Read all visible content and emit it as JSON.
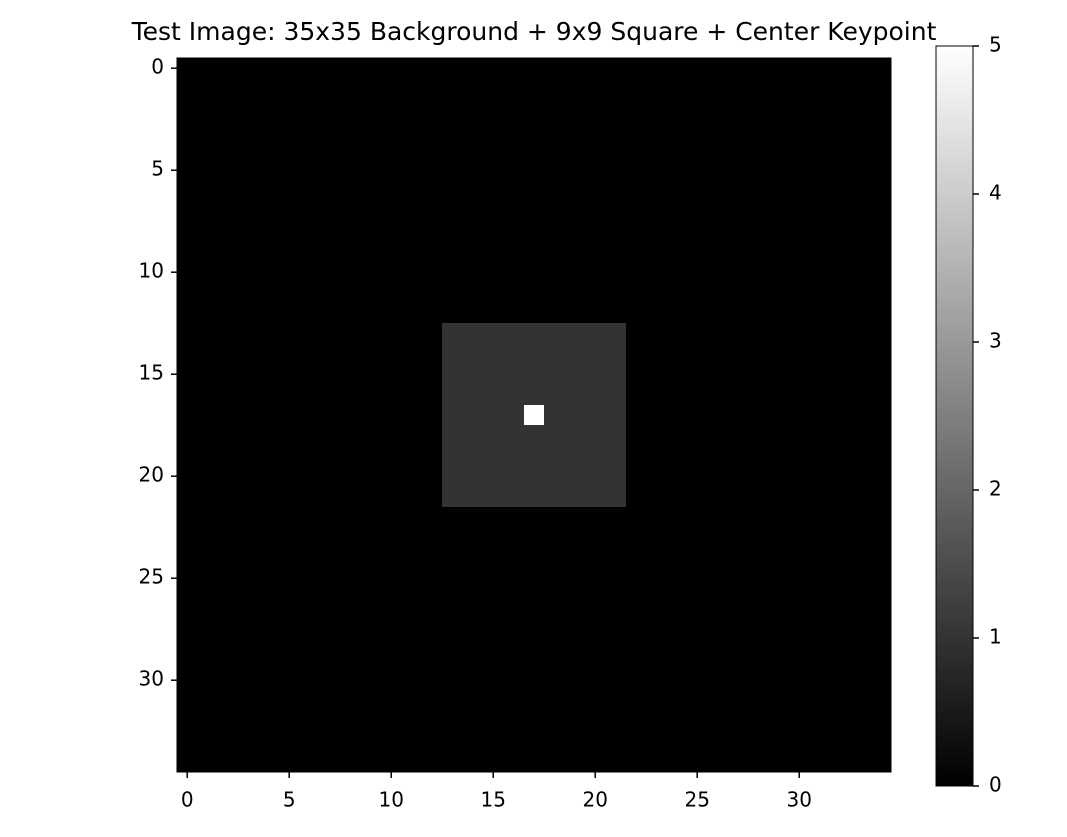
{
  "chart_data": {
    "type": "image",
    "title": "Test Image: 35x35 Background + 9x9 Square + Center Keypoint",
    "colormap": "gray",
    "clim": [
      0,
      5
    ],
    "cticks": [
      0,
      1,
      2,
      3,
      4,
      5
    ],
    "xlim": [
      -0.5,
      34.5
    ],
    "ylim": [
      34.5,
      -0.5
    ],
    "xticks": [
      0,
      5,
      10,
      15,
      20,
      25,
      30
    ],
    "yticks": [
      0,
      5,
      10,
      15,
      20,
      25,
      30
    ],
    "values": [
      [
        0,
        0,
        0,
        0,
        0,
        0,
        0,
        0,
        0,
        0,
        0,
        0,
        0,
        0,
        0,
        0,
        0,
        0,
        0,
        0,
        0,
        0,
        0,
        0,
        0,
        0,
        0,
        0,
        0,
        0,
        0,
        0,
        0,
        0,
        0
      ],
      [
        0,
        0,
        0,
        0,
        0,
        0,
        0,
        0,
        0,
        0,
        0,
        0,
        0,
        0,
        0,
        0,
        0,
        0,
        0,
        0,
        0,
        0,
        0,
        0,
        0,
        0,
        0,
        0,
        0,
        0,
        0,
        0,
        0,
        0,
        0
      ],
      [
        0,
        0,
        0,
        0,
        0,
        0,
        0,
        0,
        0,
        0,
        0,
        0,
        0,
        0,
        0,
        0,
        0,
        0,
        0,
        0,
        0,
        0,
        0,
        0,
        0,
        0,
        0,
        0,
        0,
        0,
        0,
        0,
        0,
        0,
        0
      ],
      [
        0,
        0,
        0,
        0,
        0,
        0,
        0,
        0,
        0,
        0,
        0,
        0,
        0,
        0,
        0,
        0,
        0,
        0,
        0,
        0,
        0,
        0,
        0,
        0,
        0,
        0,
        0,
        0,
        0,
        0,
        0,
        0,
        0,
        0,
        0
      ],
      [
        0,
        0,
        0,
        0,
        0,
        0,
        0,
        0,
        0,
        0,
        0,
        0,
        0,
        0,
        0,
        0,
        0,
        0,
        0,
        0,
        0,
        0,
        0,
        0,
        0,
        0,
        0,
        0,
        0,
        0,
        0,
        0,
        0,
        0,
        0
      ],
      [
        0,
        0,
        0,
        0,
        0,
        0,
        0,
        0,
        0,
        0,
        0,
        0,
        0,
        0,
        0,
        0,
        0,
        0,
        0,
        0,
        0,
        0,
        0,
        0,
        0,
        0,
        0,
        0,
        0,
        0,
        0,
        0,
        0,
        0,
        0
      ],
      [
        0,
        0,
        0,
        0,
        0,
        0,
        0,
        0,
        0,
        0,
        0,
        0,
        0,
        0,
        0,
        0,
        0,
        0,
        0,
        0,
        0,
        0,
        0,
        0,
        0,
        0,
        0,
        0,
        0,
        0,
        0,
        0,
        0,
        0,
        0
      ],
      [
        0,
        0,
        0,
        0,
        0,
        0,
        0,
        0,
        0,
        0,
        0,
        0,
        0,
        0,
        0,
        0,
        0,
        0,
        0,
        0,
        0,
        0,
        0,
        0,
        0,
        0,
        0,
        0,
        0,
        0,
        0,
        0,
        0,
        0,
        0
      ],
      [
        0,
        0,
        0,
        0,
        0,
        0,
        0,
        0,
        0,
        0,
        0,
        0,
        0,
        0,
        0,
        0,
        0,
        0,
        0,
        0,
        0,
        0,
        0,
        0,
        0,
        0,
        0,
        0,
        0,
        0,
        0,
        0,
        0,
        0,
        0
      ],
      [
        0,
        0,
        0,
        0,
        0,
        0,
        0,
        0,
        0,
        0,
        0,
        0,
        0,
        0,
        0,
        0,
        0,
        0,
        0,
        0,
        0,
        0,
        0,
        0,
        0,
        0,
        0,
        0,
        0,
        0,
        0,
        0,
        0,
        0,
        0
      ],
      [
        0,
        0,
        0,
        0,
        0,
        0,
        0,
        0,
        0,
        0,
        0,
        0,
        0,
        0,
        0,
        0,
        0,
        0,
        0,
        0,
        0,
        0,
        0,
        0,
        0,
        0,
        0,
        0,
        0,
        0,
        0,
        0,
        0,
        0,
        0
      ],
      [
        0,
        0,
        0,
        0,
        0,
        0,
        0,
        0,
        0,
        0,
        0,
        0,
        0,
        0,
        0,
        0,
        0,
        0,
        0,
        0,
        0,
        0,
        0,
        0,
        0,
        0,
        0,
        0,
        0,
        0,
        0,
        0,
        0,
        0,
        0
      ],
      [
        0,
        0,
        0,
        0,
        0,
        0,
        0,
        0,
        0,
        0,
        0,
        0,
        0,
        0,
        0,
        0,
        0,
        0,
        0,
        0,
        0,
        0,
        0,
        0,
        0,
        0,
        0,
        0,
        0,
        0,
        0,
        0,
        0,
        0,
        0
      ],
      [
        0,
        0,
        0,
        0,
        0,
        0,
        0,
        0,
        0,
        0,
        0,
        0,
        0,
        1,
        1,
        1,
        1,
        1,
        1,
        1,
        1,
        1,
        0,
        0,
        0,
        0,
        0,
        0,
        0,
        0,
        0,
        0,
        0,
        0,
        0
      ],
      [
        0,
        0,
        0,
        0,
        0,
        0,
        0,
        0,
        0,
        0,
        0,
        0,
        0,
        1,
        1,
        1,
        1,
        1,
        1,
        1,
        1,
        1,
        0,
        0,
        0,
        0,
        0,
        0,
        0,
        0,
        0,
        0,
        0,
        0,
        0
      ],
      [
        0,
        0,
        0,
        0,
        0,
        0,
        0,
        0,
        0,
        0,
        0,
        0,
        0,
        1,
        1,
        1,
        1,
        1,
        1,
        1,
        1,
        1,
        0,
        0,
        0,
        0,
        0,
        0,
        0,
        0,
        0,
        0,
        0,
        0,
        0
      ],
      [
        0,
        0,
        0,
        0,
        0,
        0,
        0,
        0,
        0,
        0,
        0,
        0,
        0,
        1,
        1,
        1,
        1,
        1,
        1,
        1,
        1,
        1,
        0,
        0,
        0,
        0,
        0,
        0,
        0,
        0,
        0,
        0,
        0,
        0,
        0
      ],
      [
        0,
        0,
        0,
        0,
        0,
        0,
        0,
        0,
        0,
        0,
        0,
        0,
        0,
        1,
        1,
        1,
        1,
        5,
        1,
        1,
        1,
        1,
        0,
        0,
        0,
        0,
        0,
        0,
        0,
        0,
        0,
        0,
        0,
        0,
        0
      ],
      [
        0,
        0,
        0,
        0,
        0,
        0,
        0,
        0,
        0,
        0,
        0,
        0,
        0,
        1,
        1,
        1,
        1,
        1,
        1,
        1,
        1,
        1,
        0,
        0,
        0,
        0,
        0,
        0,
        0,
        0,
        0,
        0,
        0,
        0,
        0
      ],
      [
        0,
        0,
        0,
        0,
        0,
        0,
        0,
        0,
        0,
        0,
        0,
        0,
        0,
        1,
        1,
        1,
        1,
        1,
        1,
        1,
        1,
        1,
        0,
        0,
        0,
        0,
        0,
        0,
        0,
        0,
        0,
        0,
        0,
        0,
        0
      ],
      [
        0,
        0,
        0,
        0,
        0,
        0,
        0,
        0,
        0,
        0,
        0,
        0,
        0,
        1,
        1,
        1,
        1,
        1,
        1,
        1,
        1,
        1,
        0,
        0,
        0,
        0,
        0,
        0,
        0,
        0,
        0,
        0,
        0,
        0,
        0
      ],
      [
        0,
        0,
        0,
        0,
        0,
        0,
        0,
        0,
        0,
        0,
        0,
        0,
        0,
        1,
        1,
        1,
        1,
        1,
        1,
        1,
        1,
        1,
        0,
        0,
        0,
        0,
        0,
        0,
        0,
        0,
        0,
        0,
        0,
        0,
        0
      ],
      [
        0,
        0,
        0,
        0,
        0,
        0,
        0,
        0,
        0,
        0,
        0,
        0,
        0,
        0,
        0,
        0,
        0,
        0,
        0,
        0,
        0,
        0,
        0,
        0,
        0,
        0,
        0,
        0,
        0,
        0,
        0,
        0,
        0,
        0,
        0
      ],
      [
        0,
        0,
        0,
        0,
        0,
        0,
        0,
        0,
        0,
        0,
        0,
        0,
        0,
        0,
        0,
        0,
        0,
        0,
        0,
        0,
        0,
        0,
        0,
        0,
        0,
        0,
        0,
        0,
        0,
        0,
        0,
        0,
        0,
        0,
        0
      ],
      [
        0,
        0,
        0,
        0,
        0,
        0,
        0,
        0,
        0,
        0,
        0,
        0,
        0,
        0,
        0,
        0,
        0,
        0,
        0,
        0,
        0,
        0,
        0,
        0,
        0,
        0,
        0,
        0,
        0,
        0,
        0,
        0,
        0,
        0,
        0
      ],
      [
        0,
        0,
        0,
        0,
        0,
        0,
        0,
        0,
        0,
        0,
        0,
        0,
        0,
        0,
        0,
        0,
        0,
        0,
        0,
        0,
        0,
        0,
        0,
        0,
        0,
        0,
        0,
        0,
        0,
        0,
        0,
        0,
        0,
        0,
        0
      ],
      [
        0,
        0,
        0,
        0,
        0,
        0,
        0,
        0,
        0,
        0,
        0,
        0,
        0,
        0,
        0,
        0,
        0,
        0,
        0,
        0,
        0,
        0,
        0,
        0,
        0,
        0,
        0,
        0,
        0,
        0,
        0,
        0,
        0,
        0,
        0
      ],
      [
        0,
        0,
        0,
        0,
        0,
        0,
        0,
        0,
        0,
        0,
        0,
        0,
        0,
        0,
        0,
        0,
        0,
        0,
        0,
        0,
        0,
        0,
        0,
        0,
        0,
        0,
        0,
        0,
        0,
        0,
        0,
        0,
        0,
        0,
        0
      ],
      [
        0,
        0,
        0,
        0,
        0,
        0,
        0,
        0,
        0,
        0,
        0,
        0,
        0,
        0,
        0,
        0,
        0,
        0,
        0,
        0,
        0,
        0,
        0,
        0,
        0,
        0,
        0,
        0,
        0,
        0,
        0,
        0,
        0,
        0,
        0
      ],
      [
        0,
        0,
        0,
        0,
        0,
        0,
        0,
        0,
        0,
        0,
        0,
        0,
        0,
        0,
        0,
        0,
        0,
        0,
        0,
        0,
        0,
        0,
        0,
        0,
        0,
        0,
        0,
        0,
        0,
        0,
        0,
        0,
        0,
        0,
        0
      ],
      [
        0,
        0,
        0,
        0,
        0,
        0,
        0,
        0,
        0,
        0,
        0,
        0,
        0,
        0,
        0,
        0,
        0,
        0,
        0,
        0,
        0,
        0,
        0,
        0,
        0,
        0,
        0,
        0,
        0,
        0,
        0,
        0,
        0,
        0,
        0
      ],
      [
        0,
        0,
        0,
        0,
        0,
        0,
        0,
        0,
        0,
        0,
        0,
        0,
        0,
        0,
        0,
        0,
        0,
        0,
        0,
        0,
        0,
        0,
        0,
        0,
        0,
        0,
        0,
        0,
        0,
        0,
        0,
        0,
        0,
        0,
        0
      ],
      [
        0,
        0,
        0,
        0,
        0,
        0,
        0,
        0,
        0,
        0,
        0,
        0,
        0,
        0,
        0,
        0,
        0,
        0,
        0,
        0,
        0,
        0,
        0,
        0,
        0,
        0,
        0,
        0,
        0,
        0,
        0,
        0,
        0,
        0,
        0
      ],
      [
        0,
        0,
        0,
        0,
        0,
        0,
        0,
        0,
        0,
        0,
        0,
        0,
        0,
        0,
        0,
        0,
        0,
        0,
        0,
        0,
        0,
        0,
        0,
        0,
        0,
        0,
        0,
        0,
        0,
        0,
        0,
        0,
        0,
        0,
        0
      ],
      [
        0,
        0,
        0,
        0,
        0,
        0,
        0,
        0,
        0,
        0,
        0,
        0,
        0,
        0,
        0,
        0,
        0,
        0,
        0,
        0,
        0,
        0,
        0,
        0,
        0,
        0,
        0,
        0,
        0,
        0,
        0,
        0,
        0,
        0,
        0
      ]
    ]
  }
}
